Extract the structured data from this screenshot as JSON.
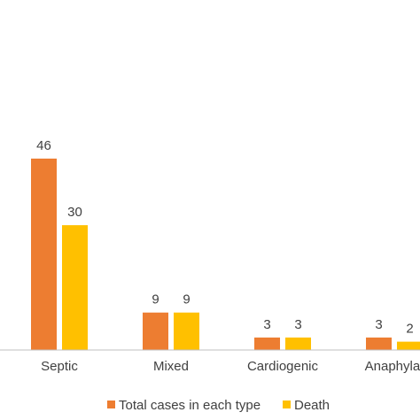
{
  "chart_data": {
    "type": "bar",
    "categories": [
      "Septic",
      "Mixed",
      "Cardiogenic",
      "Anaphylat"
    ],
    "series": [
      {
        "name": "Total cases in each type",
        "values": [
          46,
          9,
          3,
          3
        ],
        "color": "#ED7D31"
      },
      {
        "name": "Death",
        "values": [
          30,
          9,
          3,
          2
        ],
        "color": "#FFC000"
      }
    ],
    "title": "",
    "xlabel": "",
    "ylabel": "",
    "ylim": [
      0,
      46
    ],
    "grid": false,
    "legend": "bottom",
    "axis_color": "#BFBFBF"
  }
}
